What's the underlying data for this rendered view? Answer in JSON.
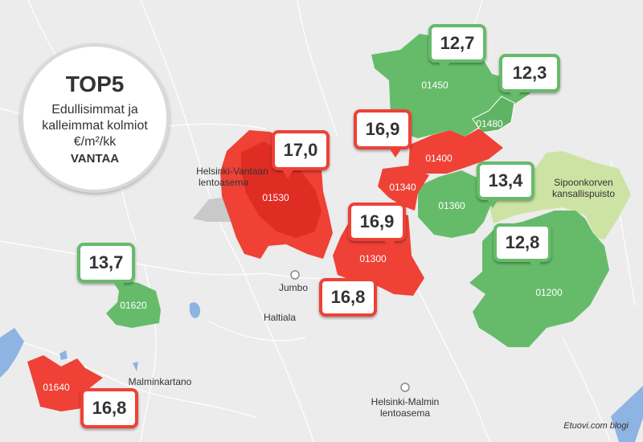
{
  "title": {
    "heading": "TOP5",
    "line1": "Edullisimmat ja",
    "line2": "kalleimmat kolmiot",
    "unit": "€/m²/kk",
    "city": "VANTAA"
  },
  "places": {
    "airport_line1": "Helsinki-Vantaan",
    "airport_line2": "lentoasema",
    "jumbo": "Jumbo",
    "haltiala": "Haltiala",
    "malminkartano": "Malminkartano",
    "malmi_line1": "Helsinki-Malmin",
    "malmi_line2": "lentoasema",
    "park_line1": "Sipoonkorven",
    "park_line2": "kansallispuisto"
  },
  "areas": [
    {
      "code": "01450",
      "value": "12,7",
      "category": "cheap"
    },
    {
      "code": "01480",
      "value": "12,3",
      "category": "cheap"
    },
    {
      "code": "01400",
      "value": "16,9",
      "category": "expensive"
    },
    {
      "code": "01530",
      "value": "17,0",
      "category": "expensive"
    },
    {
      "code": "01340",
      "value": "",
      "category": "expensive"
    },
    {
      "code": "01360",
      "value": "13,4",
      "category": "cheap"
    },
    {
      "code": "01300",
      "value": "16,9",
      "category": "expensive"
    },
    {
      "code": "01200",
      "value": "12,8",
      "category": "cheap"
    },
    {
      "code": "01620",
      "value": "13,7",
      "category": "cheap"
    },
    {
      "code": "01640",
      "value": "16,8",
      "category": "expensive"
    }
  ],
  "extra_values": {
    "near_01300": "16,8"
  },
  "colors": {
    "cheap": "#66bb6a",
    "expensive": "#ef4136",
    "park": "#cde3a4",
    "water": "#8db4e2",
    "background": "#ececec"
  },
  "credit": "Etuovi.com blogi"
}
